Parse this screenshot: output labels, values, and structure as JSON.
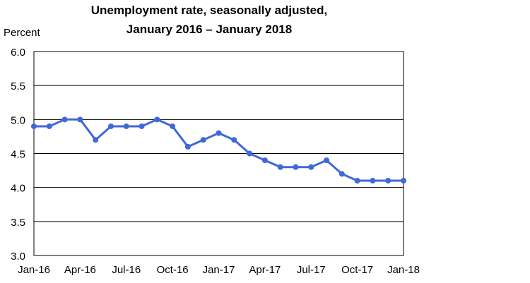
{
  "chart_data": {
    "type": "line",
    "title": "Unemployment rate, seasonally adjusted,",
    "subtitle": "January 2016 – January 2018",
    "ylabel": "Percent",
    "xlabel": "",
    "ylim": [
      3.0,
      6.0
    ],
    "yticks": [
      "3.0",
      "3.5",
      "4.0",
      "4.5",
      "5.0",
      "5.5",
      "6.0"
    ],
    "grid": true,
    "legend": "none",
    "x": [
      "Jan-16",
      "Feb-16",
      "Mar-16",
      "Apr-16",
      "May-16",
      "Jun-16",
      "Jul-16",
      "Aug-16",
      "Sep-16",
      "Oct-16",
      "Nov-16",
      "Dec-16",
      "Jan-17",
      "Feb-17",
      "Mar-17",
      "Apr-17",
      "May-17",
      "Jun-17",
      "Jul-17",
      "Aug-17",
      "Sep-17",
      "Oct-17",
      "Nov-17",
      "Dec-17",
      "Jan-18"
    ],
    "xtick_labels": [
      "Jan-16",
      "Apr-16",
      "Jul-16",
      "Oct-16",
      "Jan-17",
      "Apr-17",
      "Jul-17",
      "Oct-17",
      "Jan-18"
    ],
    "series": [
      {
        "color": "#3f68d8",
        "values": [
          4.9,
          4.9,
          5.0,
          5.0,
          4.7,
          4.9,
          4.9,
          4.9,
          5.0,
          4.9,
          4.6,
          4.7,
          4.8,
          4.7,
          4.5,
          4.4,
          4.3,
          4.3,
          4.3,
          4.4,
          4.2,
          4.1,
          4.1,
          4.1,
          4.1
        ]
      }
    ]
  }
}
